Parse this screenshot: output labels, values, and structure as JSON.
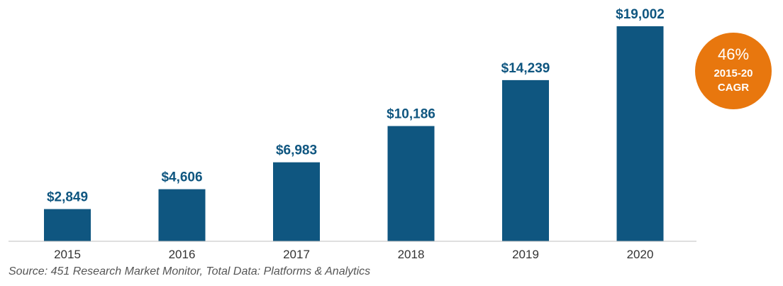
{
  "chart_data": {
    "type": "bar",
    "categories": [
      "2015",
      "2016",
      "2017",
      "2018",
      "2019",
      "2020"
    ],
    "values": [
      2849,
      4606,
      6983,
      10186,
      14239,
      19002
    ],
    "value_labels": [
      "$2,849",
      "$4,606",
      "$6,983",
      "$10,186",
      "$14,239",
      "$19,002"
    ],
    "title": "",
    "xlabel": "",
    "ylabel": "",
    "ylim": [
      0,
      19002
    ],
    "grid": false,
    "legend": "none",
    "bar_color": "#0f5680",
    "annotation": {
      "percent": "46%",
      "line1": "2015-20",
      "line2": "CAGR",
      "color": "#e8770e"
    }
  },
  "source": "Source: 451 Research Market Monitor, Total Data: Platforms & Analytics"
}
